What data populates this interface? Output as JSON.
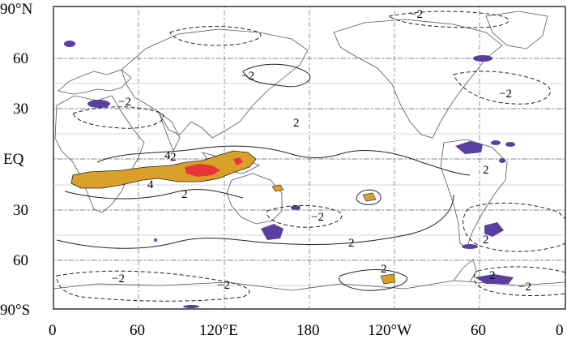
{
  "axes": {
    "y_labels": [
      "90°N",
      "60",
      "30",
      "EQ",
      "30",
      "60",
      "90°S"
    ],
    "x_labels": [
      "0",
      "60",
      "120°E",
      "180",
      "120°W",
      "60",
      "0"
    ]
  },
  "contour_labels": {
    "pos": [
      "4",
      "4",
      "2",
      "2",
      "2",
      "2",
      "2",
      "2",
      "2",
      "2"
    ],
    "neg": [
      "−2",
      "−2",
      "−2",
      "−2",
      "−2",
      "−2",
      "−2",
      "−2"
    ]
  },
  "colors": {
    "positive_high": "#e8343a",
    "positive_mid": "#d9a12a",
    "negative": "#5a3fa0",
    "frame": "#000000"
  }
}
